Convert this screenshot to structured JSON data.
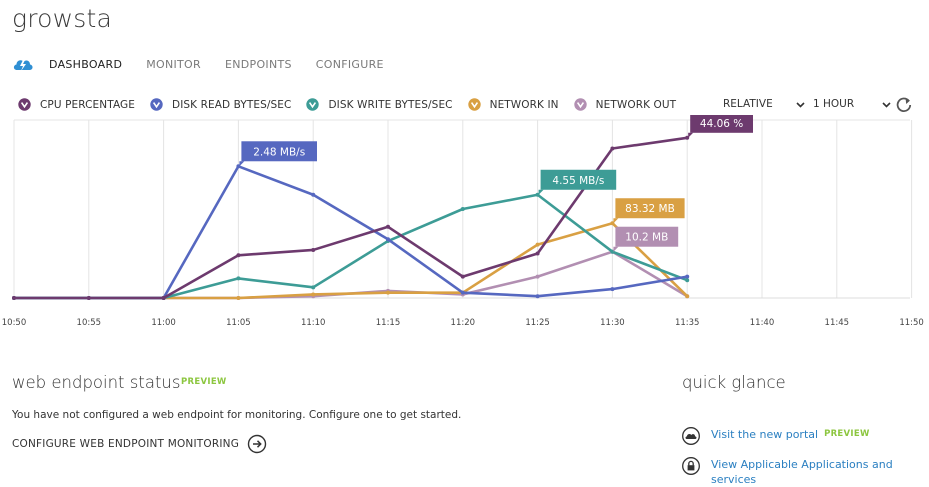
{
  "app": {
    "title": "growsta"
  },
  "nav": {
    "tabs": [
      "DASHBOARD",
      "MONITOR",
      "ENDPOINTS",
      "CONFIGURE"
    ],
    "active": "DASHBOARD"
  },
  "legend": [
    {
      "label": "CPU PERCENTAGE",
      "color": "#6d3a6e"
    },
    {
      "label": "DISK READ BYTES/SEC",
      "color": "#5668c0"
    },
    {
      "label": "DISK WRITE BYTES/SEC",
      "color": "#3d9c96"
    },
    {
      "label": "NETWORK IN",
      "color": "#d9a043"
    },
    {
      "label": "NETWORK OUT",
      "color": "#b28fb2"
    }
  ],
  "controls": {
    "range_mode": "RELATIVE",
    "time_span": "1 HOUR"
  },
  "chart_data": {
    "type": "line",
    "x": [
      "10:50",
      "10:55",
      "11:00",
      "11:05",
      "11:10",
      "11:15",
      "11:20",
      "11:25",
      "11:30",
      "11:35",
      "11:40",
      "11:45",
      "11:50"
    ],
    "y_scale": "normalized 0-100 per series (each series scaled to its own max)",
    "series": [
      {
        "name": "CPU PERCENTAGE",
        "color": "#6d3a6e",
        "values": [
          0,
          0,
          0,
          24,
          27,
          40,
          12,
          25,
          84,
          90,
          null,
          null,
          null
        ],
        "peak_label": "44.06 %",
        "peak_index": 9
      },
      {
        "name": "DISK READ BYTES/SEC",
        "color": "#5668c0",
        "values": [
          0,
          0,
          0,
          74,
          58,
          33,
          3,
          1,
          5,
          12,
          null,
          null,
          null
        ],
        "peak_label": "2.48 MB/s",
        "peak_index": 3
      },
      {
        "name": "DISK WRITE BYTES/SEC",
        "color": "#3d9c96",
        "values": [
          0,
          0,
          0,
          11,
          6,
          32,
          50,
          58,
          26,
          10,
          null,
          null,
          null
        ],
        "peak_label": "4.55 MB/s",
        "peak_index": 7
      },
      {
        "name": "NETWORK IN",
        "color": "#d9a043",
        "values": [
          0,
          0,
          0,
          0,
          2,
          3,
          3,
          30,
          42,
          1,
          null,
          null,
          null
        ],
        "peak_label": "83.32 MB",
        "peak_index": 8
      },
      {
        "name": "NETWORK OUT",
        "color": "#b28fb2",
        "values": [
          0,
          0,
          0,
          0,
          1,
          4,
          2,
          12,
          26,
          1,
          null,
          null,
          null
        ],
        "peak_label": "10.2 MB",
        "peak_index": 8
      }
    ]
  },
  "web_endpoint": {
    "title": "web endpoint status",
    "badge": "PREVIEW",
    "description": "You have not configured a web endpoint for monitoring. Configure one to get started.",
    "configure_label": "CONFIGURE WEB ENDPOINT MONITORING"
  },
  "quick_glance": {
    "title": "quick glance",
    "links": [
      {
        "label": "Visit the new portal",
        "badge": "PREVIEW"
      },
      {
        "label": "View Applicable Applications and services"
      }
    ]
  }
}
